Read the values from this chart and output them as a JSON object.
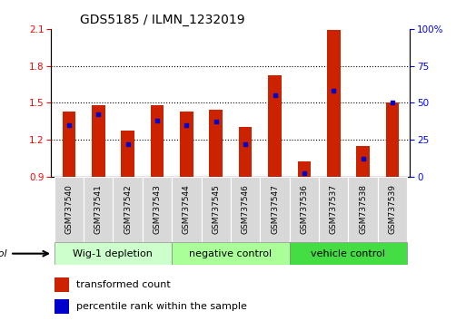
{
  "title": "GDS5185 / ILMN_1232019",
  "samples": [
    "GSM737540",
    "GSM737541",
    "GSM737542",
    "GSM737543",
    "GSM737544",
    "GSM737545",
    "GSM737546",
    "GSM737547",
    "GSM737536",
    "GSM737537",
    "GSM737538",
    "GSM737539"
  ],
  "transformed_counts": [
    1.43,
    1.48,
    1.27,
    1.48,
    1.43,
    1.44,
    1.3,
    1.72,
    1.02,
    2.09,
    1.15,
    1.5
  ],
  "percentile_ranks": [
    35,
    42,
    22,
    38,
    35,
    37,
    22,
    55,
    2,
    58,
    12,
    50
  ],
  "groups": [
    {
      "label": "Wig-1 depletion",
      "indices": [
        0,
        1,
        2,
        3
      ],
      "color": "#ccffcc"
    },
    {
      "label": "negative control",
      "indices": [
        4,
        5,
        6,
        7
      ],
      "color": "#aaff99"
    },
    {
      "label": "vehicle control",
      "indices": [
        8,
        9,
        10,
        11
      ],
      "color": "#44dd44"
    }
  ],
  "ylim": [
    0.9,
    2.1
  ],
  "yticks_left": [
    0.9,
    1.2,
    1.5,
    1.8,
    2.1
  ],
  "yticks_right": [
    0,
    25,
    50,
    75,
    100
  ],
  "bar_color": "#cc2200",
  "dot_color": "#0000cc",
  "bar_width": 0.45,
  "baseline": 0.9,
  "grid_lines": [
    1.2,
    1.5,
    1.8
  ],
  "title_fontsize": 10,
  "tick_fontsize": 7.5,
  "sample_fontsize": 6.5,
  "group_fontsize": 8,
  "legend_fontsize": 8
}
